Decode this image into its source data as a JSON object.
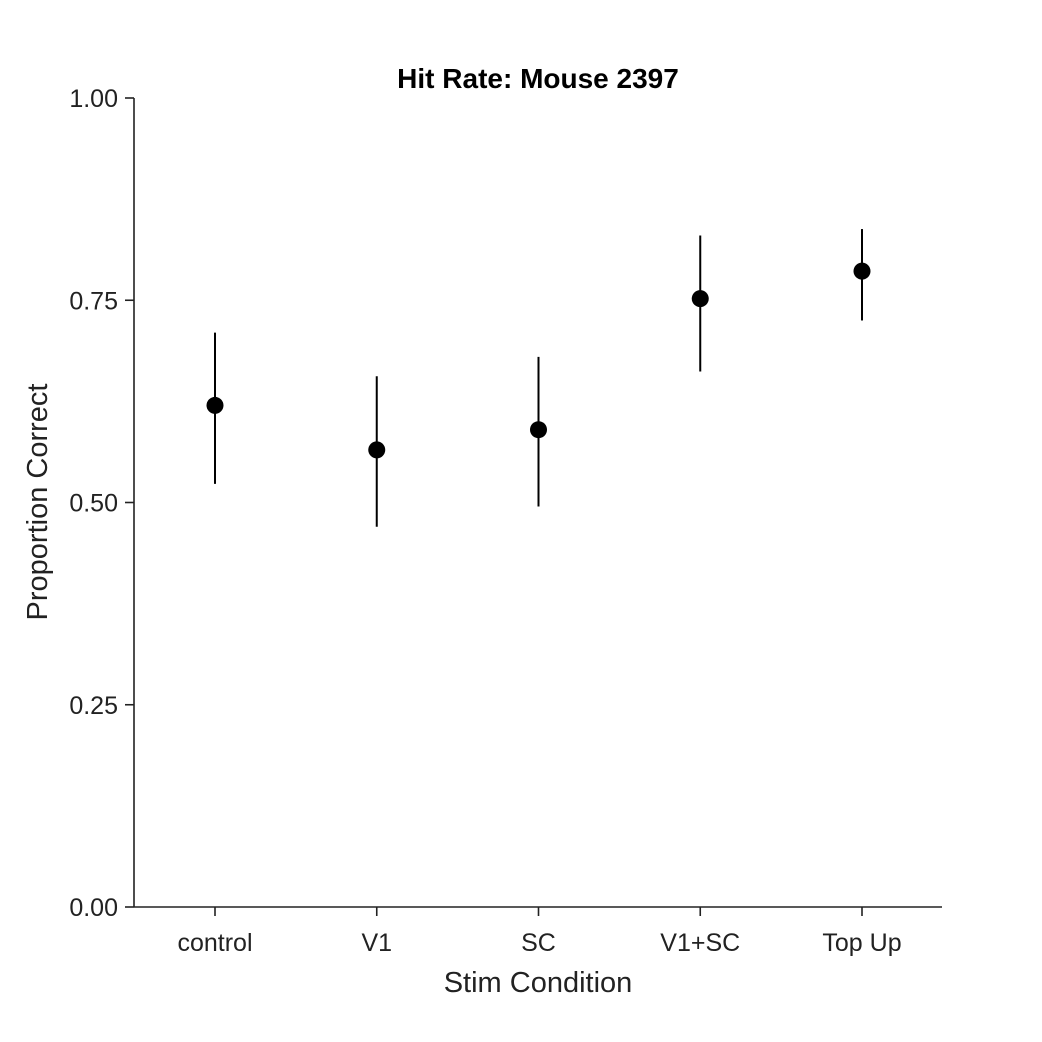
{
  "chart_data": {
    "type": "scatter",
    "title": "Hit Rate: Mouse 2397",
    "xlabel": "Stim Condition",
    "ylabel": "Proportion Correct",
    "ylim": [
      0,
      1
    ],
    "yticks": [
      "0.00",
      "0.25",
      "0.50",
      "0.75",
      "1.00"
    ],
    "ytick_values": [
      0,
      0.25,
      0.5,
      0.75,
      1.0
    ],
    "categories": [
      "control",
      "V1",
      "SC",
      "V1+SC",
      "Top Up"
    ],
    "values": [
      0.62,
      0.565,
      0.59,
      0.752,
      0.786
    ],
    "error_low": [
      0.523,
      0.47,
      0.495,
      0.662,
      0.725
    ],
    "error_high": [
      0.71,
      0.656,
      0.68,
      0.83,
      0.838
    ],
    "grid": false,
    "marker_color": "#000000"
  }
}
